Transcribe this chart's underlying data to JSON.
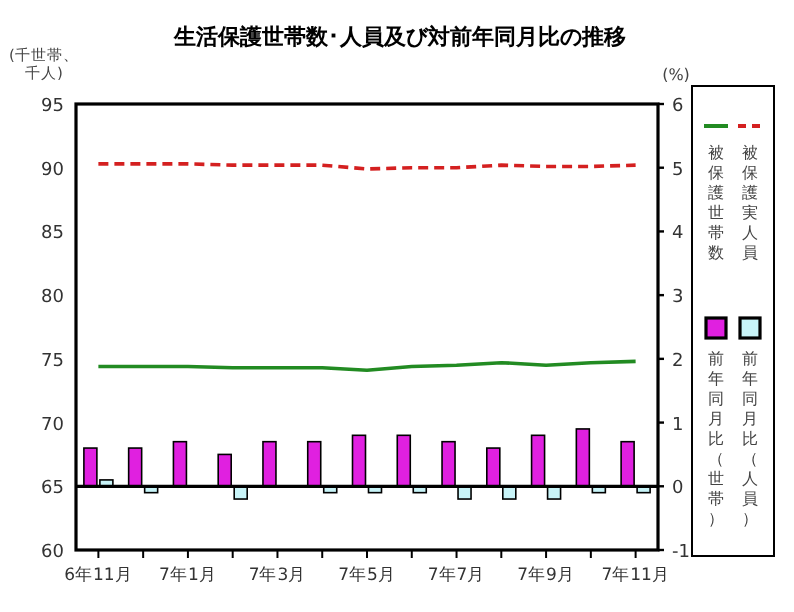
{
  "chart_data": {
    "type": "bar",
    "title": "生活保護世帯数･人員及び対前年同月比の推移",
    "ylabel": "(千世帯、千人)",
    "y2label": "(%)",
    "categories": [
      "6年11月",
      null,
      "7年1月",
      null,
      "7年3月",
      null,
      "7年5月",
      null,
      "7年7月",
      null,
      "7年9月",
      null,
      "7年11月"
    ],
    "series": [
      {
        "name": "被保護世帯数",
        "type": "line",
        "color": "#228b22",
        "line_style": "solid",
        "values": [
          74.4,
          74.4,
          74.4,
          74.3,
          74.3,
          74.3,
          74.1,
          74.4,
          74.5,
          74.7,
          74.5,
          74.7,
          74.8
        ]
      },
      {
        "name": "被保護実人員",
        "type": "line",
        "color": "#d42020",
        "line_style": "dashed",
        "values": [
          90.3,
          90.3,
          90.3,
          90.2,
          90.2,
          90.2,
          89.9,
          90.0,
          90.0,
          90.2,
          90.1,
          90.1,
          90.2
        ]
      },
      {
        "name": "前年同月比（世帯）",
        "axis": "y2",
        "color": "#e020e0",
        "values": [
          0.6,
          0.6,
          0.7,
          0.5,
          0.7,
          0.7,
          0.8,
          0.8,
          0.7,
          0.6,
          0.8,
          0.9,
          0.7
        ]
      },
      {
        "name": "前年同月比（人員）",
        "axis": "y2",
        "color": "#c8f4f8",
        "values": [
          0.1,
          -0.1,
          0.0,
          -0.2,
          0.0,
          -0.1,
          -0.1,
          -0.1,
          -0.2,
          -0.2,
          -0.2,
          -0.1,
          -0.1
        ]
      }
    ],
    "ylim": [
      60,
      95
    ],
    "yticks": [
      60,
      65,
      70,
      75,
      80,
      85,
      90,
      95
    ],
    "y2lim": [
      -1,
      6
    ],
    "y2ticks": [
      -1,
      0,
      1,
      2,
      3,
      4,
      5,
      6
    ],
    "ref_lines": [
      {
        "axis": "y2",
        "value": 0,
        "color": "#000000"
      }
    ],
    "grid": false,
    "legend": "right"
  }
}
